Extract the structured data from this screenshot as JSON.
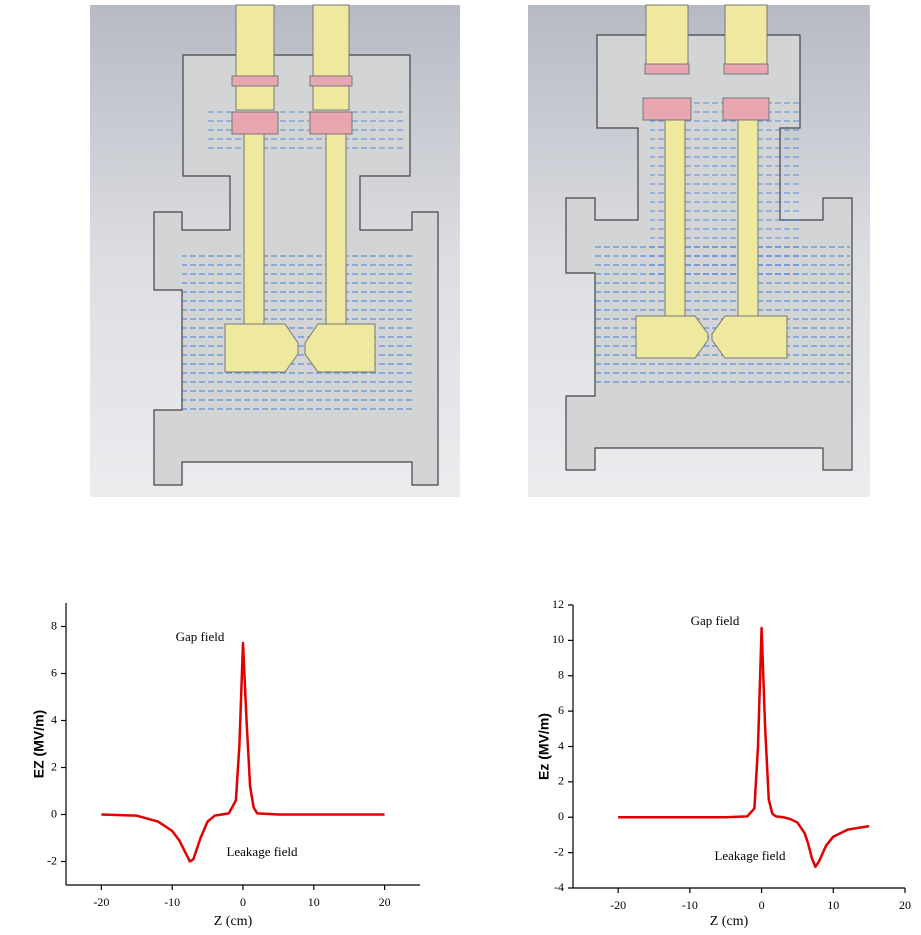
{
  "chart_data": [
    {
      "type": "line",
      "x": [
        -20,
        -15,
        -12,
        -10,
        -9,
        -8,
        -7.5,
        -7,
        -6,
        -5,
        -4,
        -3,
        -2,
        -1,
        -0.5,
        0,
        0.5,
        1,
        1.5,
        2,
        5,
        10,
        20
      ],
      "values": [
        0,
        -0.05,
        -0.3,
        -0.7,
        -1.1,
        -1.7,
        -2,
        -1.9,
        -1,
        -0.3,
        -0.05,
        0,
        0.05,
        0.6,
        3,
        7.3,
        4,
        1.2,
        0.3,
        0.05,
        0,
        0,
        0
      ],
      "color": "#e00000",
      "xlim": [
        -25,
        25
      ],
      "xticks": [
        -20,
        -10,
        0,
        10,
        20
      ],
      "ylim": [
        -3,
        9
      ],
      "yticks": [
        -2,
        0,
        2,
        4,
        6,
        8
      ],
      "x_label": "Z (cm)",
      "y_label": "EZ (MV/m)",
      "annotations": [
        "Gap field",
        "Leakage field"
      ]
    },
    {
      "type": "line",
      "x": [
        -20,
        -10,
        -5,
        -2,
        -1,
        -0.5,
        0,
        0.5,
        1,
        1.5,
        2,
        3,
        4,
        5,
        6,
        6.5,
        7,
        7.5,
        8,
        9,
        10,
        12,
        15
      ],
      "values": [
        0,
        0,
        0,
        0.05,
        0.5,
        4,
        10.7,
        5,
        1,
        0.2,
        0.05,
        0,
        -0.1,
        -0.3,
        -0.9,
        -1.5,
        -2.3,
        -2.8,
        -2.5,
        -1.6,
        -1.1,
        -0.7,
        -0.5
      ],
      "color": "#e00000",
      "xlim": [
        -26.3,
        20
      ],
      "xticks": [
        -20,
        -10,
        0,
        10,
        20
      ],
      "ylim": [
        -4,
        12
      ],
      "yticks": [
        -4,
        -2,
        0,
        2,
        4,
        6,
        8,
        10,
        12
      ],
      "x_label": "Z (cm)",
      "y_label": "Ez (MV/m)",
      "annotations": [
        "Gap field",
        "Leakage field"
      ]
    }
  ]
}
